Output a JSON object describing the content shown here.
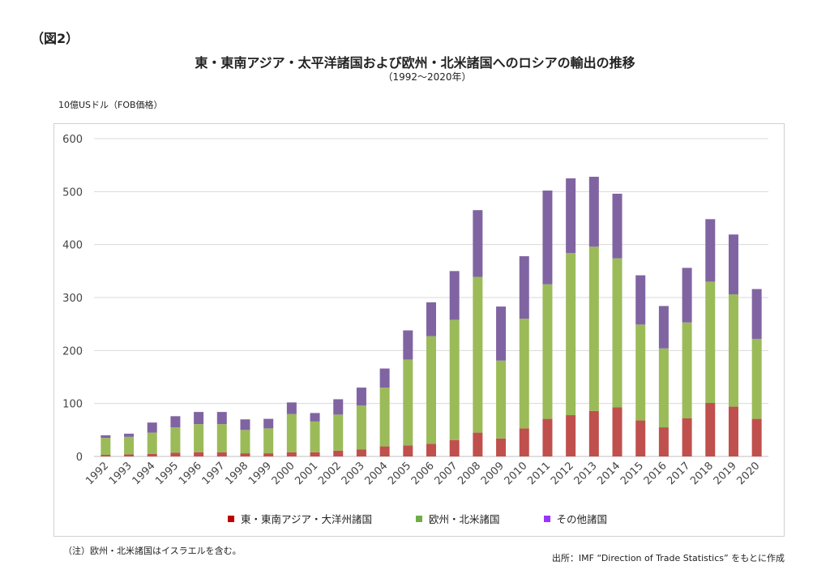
{
  "figure_label": "（図2）",
  "note": "（注）欧州・北米諸国はイスラエルを含む。",
  "source": "出所：IMF “Direction of Trade Statistics” をもとに作成",
  "chart_data": {
    "type": "bar",
    "stacked": true,
    "title": "東・東南アジア・太平洋諸国および欧州・北米諸国へのロシアの輸出の推移",
    "subtitle": "（1992～2020年）",
    "ylabel": "10億USドル（FOB価格）",
    "xlabel": "",
    "ylim": [
      0,
      600
    ],
    "yticks": [
      0,
      100,
      200,
      300,
      400,
      500,
      600
    ],
    "grid": true,
    "legend_position": "bottom",
    "categories": [
      "1992",
      "1993",
      "1994",
      "1995",
      "1996",
      "1997",
      "1998",
      "1999",
      "2000",
      "2001",
      "2002",
      "2003",
      "2004",
      "2005",
      "2006",
      "2007",
      "2008",
      "2009",
      "2010",
      "2011",
      "2012",
      "2013",
      "2014",
      "2015",
      "2016",
      "2017",
      "2018",
      "2019",
      "2020"
    ],
    "series": [
      {
        "name": "東・東南アジア・大洋州諸国",
        "color": "#c0504d",
        "values": [
          3,
          4,
          5,
          7,
          8,
          8,
          6,
          6,
          8,
          8,
          11,
          13,
          19,
          21,
          24,
          31,
          45,
          34,
          53,
          71,
          78,
          86,
          93,
          68,
          55,
          72,
          101,
          94,
          71
        ]
      },
      {
        "name": "欧州・北米諸国",
        "color": "#9bbb59",
        "values": [
          32,
          33,
          40,
          48,
          53,
          53,
          44,
          47,
          72,
          58,
          68,
          83,
          111,
          162,
          203,
          227,
          294,
          147,
          207,
          254,
          306,
          310,
          281,
          181,
          149,
          181,
          229,
          212,
          151
        ]
      },
      {
        "name": "その他諸国",
        "color": "#8064a2",
        "values": [
          5,
          6,
          19,
          21,
          23,
          23,
          20,
          18,
          22,
          16,
          29,
          34,
          36,
          55,
          64,
          92,
          126,
          102,
          118,
          177,
          141,
          132,
          122,
          93,
          80,
          103,
          118,
          113,
          94
        ]
      }
    ]
  }
}
